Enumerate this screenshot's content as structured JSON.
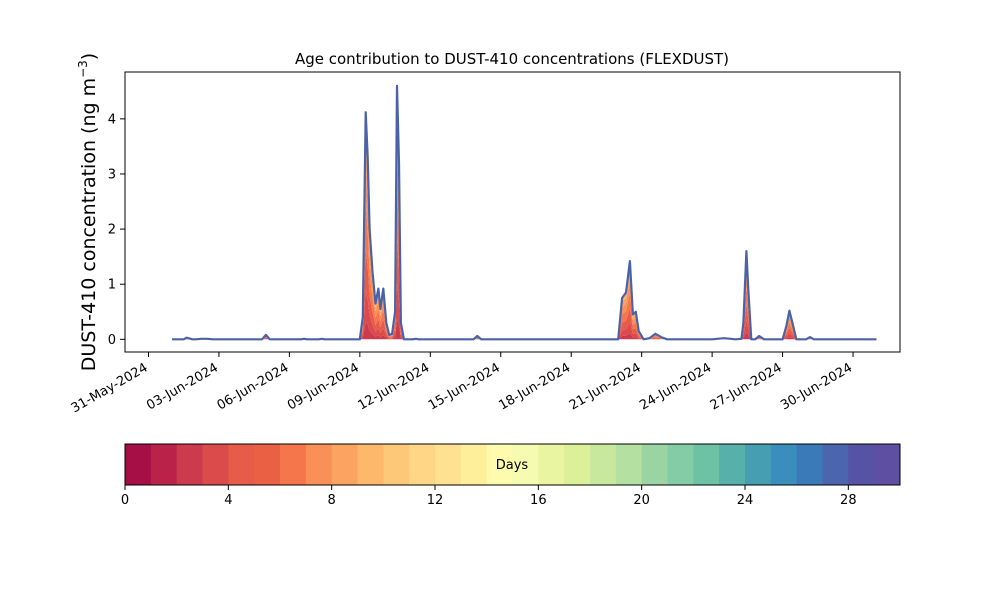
{
  "chart_data": {
    "type": "area",
    "title": "Age contribution to DUST-410 concentrations (FLEXDUST)",
    "ylabel_main": "DUST-410 concentration (ng m",
    "ylabel_sup": "−3",
    "ylabel_close": ")",
    "xlabel": "",
    "xlim": [
      "2024-05-30",
      "2024-07-02"
    ],
    "ylim": [
      -0.23,
      4.85
    ],
    "yticks": [
      0,
      1,
      2,
      3,
      4
    ],
    "xtick_labels": [
      "31-May-2024",
      "03-Jun-2024",
      "06-Jun-2024",
      "09-Jun-2024",
      "12-Jun-2024",
      "15-Jun-2024",
      "18-Jun-2024",
      "21-Jun-2024",
      "24-Jun-2024",
      "27-Jun-2024",
      "30-Jun-2024"
    ],
    "xtick_dates": [
      "2024-05-31",
      "2024-06-03",
      "2024-06-06",
      "2024-06-09",
      "2024-06-12",
      "2024-06-15",
      "2024-06-18",
      "2024-06-21",
      "2024-06-24",
      "2024-06-27",
      "2024-06-30"
    ],
    "total_line_color": "#4a63a8",
    "series_total": {
      "name": "",
      "points": [
        [
          "2024-06-01T00:00",
          0.0
        ],
        [
          "2024-06-01T12:00",
          0.0
        ],
        [
          "2024-06-01T15:00",
          0.03
        ],
        [
          "2024-06-01T21:00",
          0.0
        ],
        [
          "2024-06-02T00:00",
          0.0
        ],
        [
          "2024-06-02T06:00",
          0.01
        ],
        [
          "2024-06-02T12:00",
          0.01
        ],
        [
          "2024-06-02T18:00",
          0.0
        ],
        [
          "2024-06-04T20:00",
          0.0
        ],
        [
          "2024-06-05T00:00",
          0.08
        ],
        [
          "2024-06-05T04:00",
          0.0
        ],
        [
          "2024-06-06T12:00",
          0.0
        ],
        [
          "2024-06-06T15:00",
          0.01
        ],
        [
          "2024-06-06T18:00",
          0.0
        ],
        [
          "2024-06-07T06:00",
          0.0
        ],
        [
          "2024-06-07T09:00",
          0.01
        ],
        [
          "2024-06-07T12:00",
          0.0
        ],
        [
          "2024-06-09T00:00",
          0.0
        ],
        [
          "2024-06-09T03:00",
          0.4
        ],
        [
          "2024-06-09T06:00",
          4.12
        ],
        [
          "2024-06-09T08:00",
          3.3
        ],
        [
          "2024-06-09T10:00",
          2.0
        ],
        [
          "2024-06-09T13:00",
          1.2
        ],
        [
          "2024-06-09T16:00",
          0.65
        ],
        [
          "2024-06-09T19:00",
          0.92
        ],
        [
          "2024-06-09T21:00",
          0.55
        ],
        [
          "2024-06-10T00:00",
          0.92
        ],
        [
          "2024-06-10T03:00",
          0.3
        ],
        [
          "2024-06-10T06:00",
          0.08
        ],
        [
          "2024-06-10T09:00",
          0.1
        ],
        [
          "2024-06-10T12:00",
          0.5
        ],
        [
          "2024-06-10T14:00",
          4.6
        ],
        [
          "2024-06-10T16:00",
          3.2
        ],
        [
          "2024-06-10T18:00",
          0.3
        ],
        [
          "2024-06-10T21:00",
          0.0
        ],
        [
          "2024-06-11T06:00",
          0.0
        ],
        [
          "2024-06-11T09:00",
          0.01
        ],
        [
          "2024-06-11T12:00",
          0.0
        ],
        [
          "2024-06-13T20:00",
          0.0
        ],
        [
          "2024-06-14T00:00",
          0.06
        ],
        [
          "2024-06-14T04:00",
          0.0
        ],
        [
          "2024-06-20T00:00",
          0.0
        ],
        [
          "2024-06-20T04:00",
          0.75
        ],
        [
          "2024-06-20T08:00",
          0.85
        ],
        [
          "2024-06-20T12:00",
          1.42
        ],
        [
          "2024-06-20T15:00",
          0.45
        ],
        [
          "2024-06-20T18:00",
          0.5
        ],
        [
          "2024-06-20T21:00",
          0.15
        ],
        [
          "2024-06-21T02:00",
          0.0
        ],
        [
          "2024-06-21T08:00",
          0.02
        ],
        [
          "2024-06-21T14:00",
          0.1
        ],
        [
          "2024-06-21T20:00",
          0.04
        ],
        [
          "2024-06-22T02:00",
          0.0
        ],
        [
          "2024-06-24T00:00",
          0.0
        ],
        [
          "2024-06-24T12:00",
          0.02
        ],
        [
          "2024-06-25T00:00",
          0.0
        ],
        [
          "2024-06-25T06:00",
          0.01
        ],
        [
          "2024-06-25T08:00",
          0.3
        ],
        [
          "2024-06-25T11:00",
          1.6
        ],
        [
          "2024-06-25T13:00",
          0.9
        ],
        [
          "2024-06-25T16:00",
          0.0
        ],
        [
          "2024-06-25T20:00",
          0.0
        ],
        [
          "2024-06-26T00:00",
          0.06
        ],
        [
          "2024-06-26T05:00",
          0.0
        ],
        [
          "2024-06-27T00:00",
          0.0
        ],
        [
          "2024-06-27T04:00",
          0.25
        ],
        [
          "2024-06-27T07:00",
          0.52
        ],
        [
          "2024-06-27T10:00",
          0.3
        ],
        [
          "2024-06-27T14:00",
          0.0
        ],
        [
          "2024-06-28T00:00",
          0.0
        ],
        [
          "2024-06-28T04:00",
          0.04
        ],
        [
          "2024-06-28T08:00",
          0.0
        ],
        [
          "2024-07-01T00:00",
          0.0
        ]
      ]
    },
    "colorbar": {
      "label": "Days",
      "min": 0,
      "max": 30,
      "tick_values": [
        0,
        4,
        8,
        12,
        16,
        20,
        24,
        28
      ],
      "tick_labels": [
        "0",
        "4",
        "8",
        "12",
        "16",
        "20",
        "24",
        "28"
      ],
      "colors": [
        "#a50f46",
        "#bb2249",
        "#cc3a4e",
        "#dc4b4c",
        "#e65b49",
        "#ea6044",
        "#f5764b",
        "#f89058",
        "#fba361",
        "#fdb86b",
        "#fdc878",
        "#fed685",
        "#fee191",
        "#feef9b",
        "#fefaae",
        "#f5fbb0",
        "#e9f5a0",
        "#dbf099",
        "#c8e89d",
        "#b4e0a2",
        "#9bd4a3",
        "#84cca5",
        "#6dc2a5",
        "#57b0aa",
        "#469eb2",
        "#3a8ebc",
        "#3b7ab9",
        "#4b65ae",
        "#5652a4",
        "#5e4fa2"
      ]
    }
  }
}
